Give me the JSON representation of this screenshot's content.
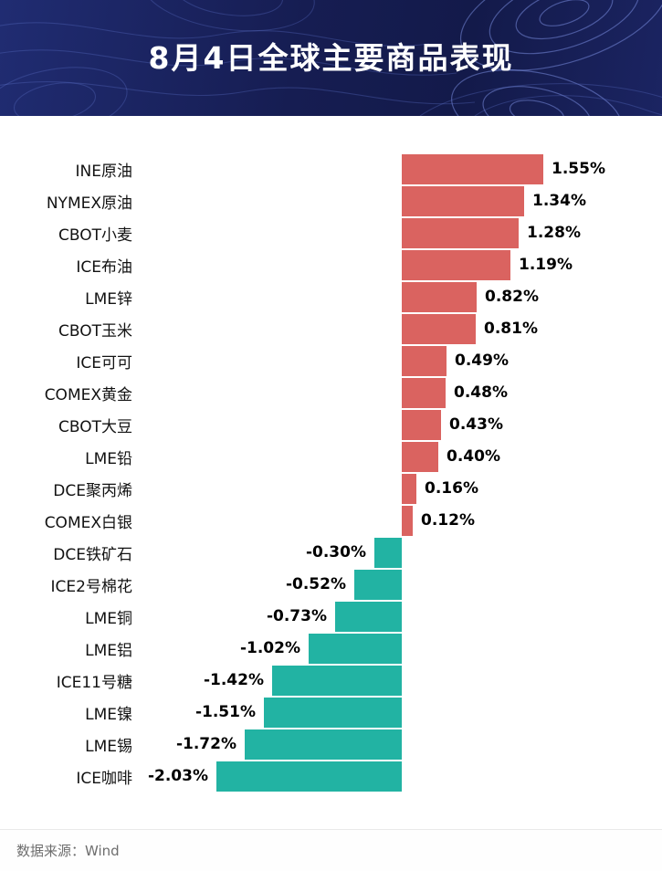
{
  "header": {
    "title": "8月4日全球主要商品表现",
    "bg_color": "#161d52"
  },
  "chart_data": {
    "type": "bar",
    "orientation": "horizontal",
    "unit": "%",
    "title": "8月4日全球主要商品表现",
    "xlabel": "",
    "ylabel": "",
    "xlim": [
      -2.85,
      2.85
    ],
    "grid": false,
    "legend": false,
    "positive_color": "#da6360",
    "negative_color": "#22b3a3",
    "categories": [
      "INE原油",
      "NYMEX原油",
      "CBOT小麦",
      "ICE布油",
      "LME锌",
      "CBOT玉米",
      "ICE可可",
      "COMEX黄金",
      "CBOT大豆",
      "LME铅",
      "DCE聚丙烯",
      "COMEX白银",
      "DCE铁矿石",
      "ICE2号棉花",
      "LME铜",
      "LME铝",
      "ICE11号糖",
      "LME镍",
      "LME锡",
      "ICE咖啡"
    ],
    "values": [
      1.55,
      1.34,
      1.28,
      1.19,
      0.82,
      0.81,
      0.49,
      0.48,
      0.43,
      0.4,
      0.16,
      0.12,
      -0.3,
      -0.52,
      -0.73,
      -1.02,
      -1.42,
      -1.51,
      -1.72,
      -2.03
    ],
    "labels": [
      "1.55%",
      "1.34%",
      "1.28%",
      "1.19%",
      "0.82%",
      "0.81%",
      "0.49%",
      "0.48%",
      "0.43%",
      "0.40%",
      "0.16%",
      "0.12%",
      "-0.30%",
      "-0.52%",
      "-0.73%",
      "-1.02%",
      "-1.42%",
      "-1.51%",
      "-1.72%",
      "-2.03%"
    ]
  },
  "footer": {
    "source_text": "数据来源：Wind"
  }
}
